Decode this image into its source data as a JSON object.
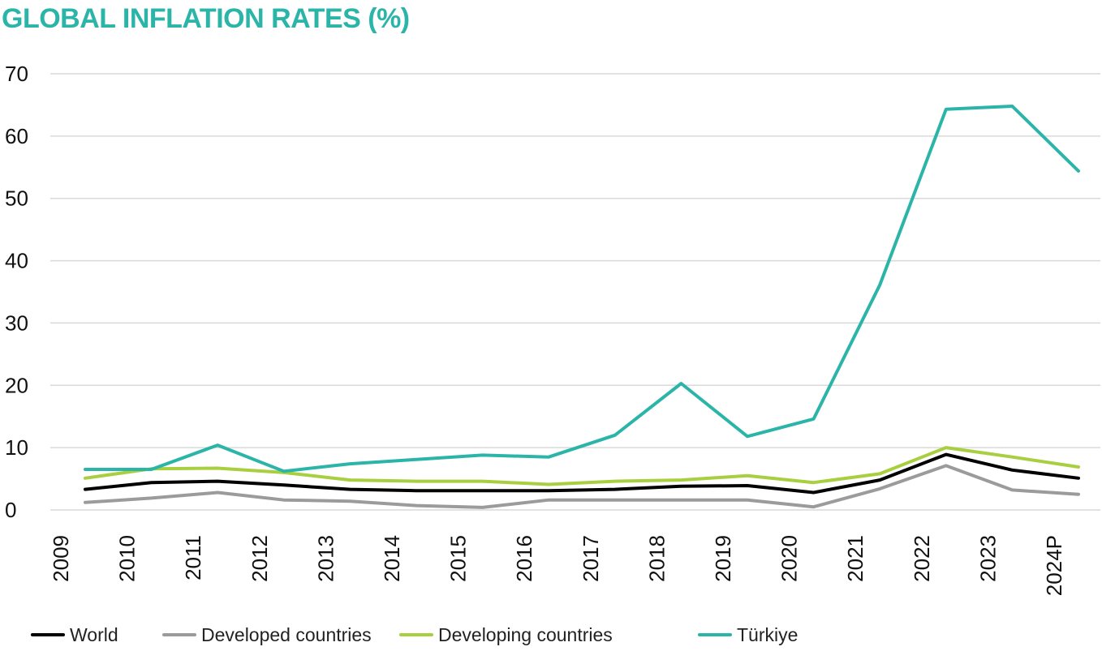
{
  "chart_data": {
    "type": "line",
    "title": "GLOBAL INFLATION RATES (%)",
    "xlabel": "",
    "ylabel": "",
    "ylim": [
      0,
      70
    ],
    "yticks": [
      "0",
      "10",
      "20",
      "30",
      "40",
      "50",
      "60",
      "70"
    ],
    "grid": true,
    "legend_position": "bottom",
    "categories": [
      "2009",
      "2010",
      "2011",
      "2012",
      "2013",
      "2014",
      "2015",
      "2016",
      "2017",
      "2018",
      "2019",
      "2020",
      "2021",
      "2022",
      "2023",
      "2024P"
    ],
    "series": [
      {
        "name": "World",
        "color": "#000000",
        "values": [
          3.3,
          4.4,
          4.6,
          4.0,
          3.3,
          3.1,
          3.1,
          3.1,
          3.3,
          3.8,
          3.9,
          2.8,
          4.8,
          8.9,
          6.4,
          5.1
        ]
      },
      {
        "name": "Developed countries",
        "color": "#9b9b9b",
        "values": [
          1.2,
          1.9,
          2.8,
          1.6,
          1.4,
          0.7,
          0.4,
          1.6,
          1.6,
          1.6,
          1.6,
          0.5,
          3.4,
          7.1,
          3.2,
          2.5
        ]
      },
      {
        "name": "Developing countries",
        "color": "#a8cf3f",
        "values": [
          5.1,
          6.6,
          6.7,
          6.0,
          4.8,
          4.6,
          4.6,
          4.1,
          4.6,
          4.8,
          5.5,
          4.4,
          5.8,
          10.0,
          8.5,
          6.9
        ]
      },
      {
        "name": "Türkiye",
        "color": "#2bb5a8",
        "values": [
          6.5,
          6.5,
          10.4,
          6.2,
          7.4,
          8.1,
          8.8,
          8.5,
          12.0,
          20.3,
          11.8,
          14.6,
          36.1,
          64.3,
          64.8,
          54.4
        ]
      }
    ]
  }
}
